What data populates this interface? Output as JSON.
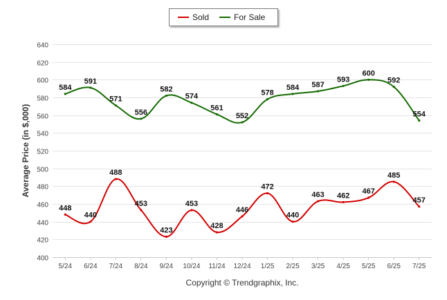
{
  "chart_data": {
    "type": "line",
    "title": "",
    "xlabel": "",
    "ylabel": "Average Price (in $,000)",
    "categories": [
      "5/24",
      "6/24",
      "7/24",
      "8/24",
      "9/24",
      "10/24",
      "11/24",
      "12/24",
      "1/25",
      "2/25",
      "3/25",
      "4/25",
      "5/25",
      "6/25",
      "7/25"
    ],
    "ylim": [
      400,
      640
    ],
    "yticks": [
      400,
      420,
      440,
      460,
      480,
      500,
      520,
      540,
      560,
      580,
      600,
      620,
      640
    ],
    "grid": true,
    "legend_position": "top-center",
    "series": [
      {
        "name": "Sold",
        "color": "#d40000",
        "values": [
          448,
          440,
          488,
          453,
          423,
          453,
          428,
          446,
          472,
          440,
          463,
          462,
          467,
          485,
          457
        ]
      },
      {
        "name": "For Sale",
        "color": "#136a00",
        "values": [
          584,
          591,
          571,
          556,
          582,
          574,
          561,
          552,
          578,
          584,
          587,
          593,
          600,
          592,
          554
        ]
      }
    ]
  },
  "footer": {
    "copyright": "Copyright © Trendgraphix, Inc."
  }
}
